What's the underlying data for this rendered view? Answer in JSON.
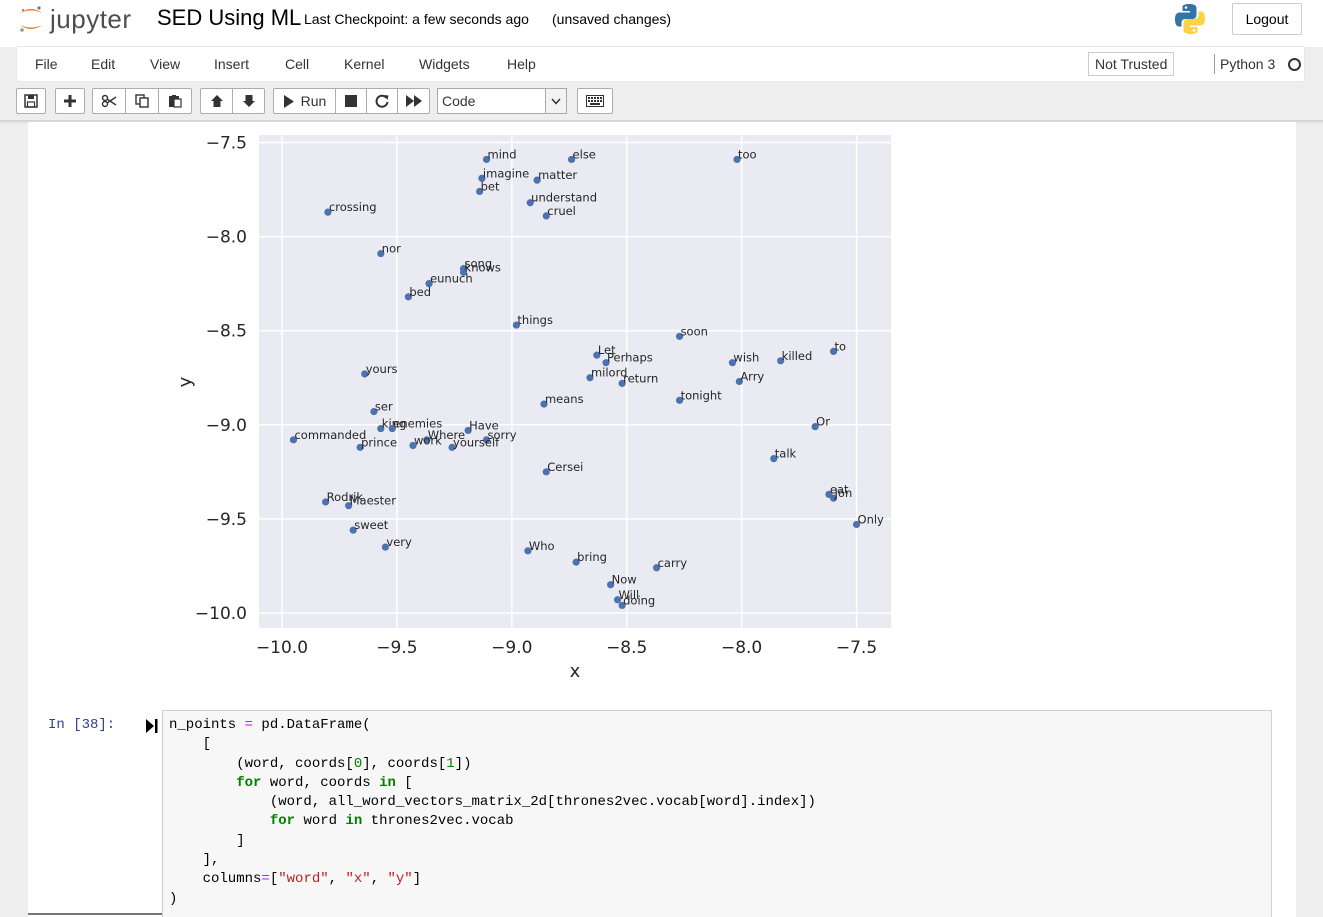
{
  "header": {
    "logo_text": "jupyter",
    "notebook_title": "SED Using ML",
    "checkpoint": "Last Checkpoint: a few seconds ago",
    "unsaved": "(unsaved changes)",
    "logout_label": "Logout"
  },
  "menubar": {
    "items": [
      "File",
      "Edit",
      "View",
      "Insert",
      "Cell",
      "Kernel",
      "Widgets",
      "Help"
    ],
    "not_trusted": "Not Trusted",
    "kernel_name": "Python 3"
  },
  "toolbar": {
    "run_label": "Run",
    "cell_type": "Code"
  },
  "icons": {
    "save": "save-icon",
    "add": "plus-icon",
    "cut": "scissors-icon",
    "copy": "copy-icon",
    "paste": "paste-icon",
    "move_up": "arrow-up-icon",
    "move_down": "arrow-down-icon",
    "run": "play-icon",
    "stop": "stop-icon",
    "restart": "restart-icon",
    "run_all": "fast-forward-icon",
    "keyboard": "keyboard-icon"
  },
  "cell": {
    "prompt": "In [38]:"
  },
  "chart_data": {
    "type": "scatter",
    "xlabel": "x",
    "ylabel": "y",
    "xlim": [
      -10.1,
      -7.35
    ],
    "ylim": [
      -10.08,
      -7.46
    ],
    "xticks": [
      -10.0,
      -9.5,
      -9.0,
      -8.5,
      -8.0,
      -7.5
    ],
    "yticks": [
      -7.5,
      -8.0,
      -8.5,
      -9.0,
      -9.5,
      -10.0
    ],
    "xtick_labels": [
      "−10.0",
      "−9.5",
      "−9.0",
      "−8.5",
      "−8.0",
      "−7.5"
    ],
    "ytick_labels": [
      "−7.5",
      "−8.0",
      "−8.5",
      "−9.0",
      "−9.5",
      "−10.0"
    ],
    "grid": true,
    "background": "#eaeaf2",
    "point_color": "#4c72b0",
    "points": [
      {
        "word": "mind",
        "x": -9.11,
        "y": -7.59
      },
      {
        "word": "else",
        "x": -8.74,
        "y": -7.59
      },
      {
        "word": "too",
        "x": -8.02,
        "y": -7.59
      },
      {
        "word": "imagine",
        "x": -9.13,
        "y": -7.69
      },
      {
        "word": "matter",
        "x": -8.89,
        "y": -7.7
      },
      {
        "word": "bet",
        "x": -9.14,
        "y": -7.76
      },
      {
        "word": "understand",
        "x": -8.92,
        "y": -7.82
      },
      {
        "word": "cruel",
        "x": -8.85,
        "y": -7.89
      },
      {
        "word": "crossing",
        "x": -9.8,
        "y": -7.87
      },
      {
        "word": "nor",
        "x": -9.57,
        "y": -8.09
      },
      {
        "word": "song",
        "x": -9.21,
        "y": -8.17
      },
      {
        "word": "knows",
        "x": -9.21,
        "y": -8.19
      },
      {
        "word": "eunuch",
        "x": -9.36,
        "y": -8.25
      },
      {
        "word": "bed",
        "x": -9.45,
        "y": -8.32
      },
      {
        "word": "things",
        "x": -8.98,
        "y": -8.47
      },
      {
        "word": "soon",
        "x": -8.27,
        "y": -8.53
      },
      {
        "word": "Let",
        "x": -8.63,
        "y": -8.63
      },
      {
        "word": "Perhaps",
        "x": -8.59,
        "y": -8.67
      },
      {
        "word": "wish",
        "x": -8.04,
        "y": -8.67
      },
      {
        "word": "killed",
        "x": -7.83,
        "y": -8.66
      },
      {
        "word": "to",
        "x": -7.6,
        "y": -8.61
      },
      {
        "word": "yours",
        "x": -9.64,
        "y": -8.73
      },
      {
        "word": "milord",
        "x": -8.66,
        "y": -8.75
      },
      {
        "word": "return",
        "x": -8.52,
        "y": -8.78
      },
      {
        "word": "Arry",
        "x": -8.01,
        "y": -8.77
      },
      {
        "word": "tonight",
        "x": -8.27,
        "y": -8.87
      },
      {
        "word": "means",
        "x": -8.86,
        "y": -8.89
      },
      {
        "word": "ser",
        "x": -9.6,
        "y": -8.93
      },
      {
        "word": "king",
        "x": -9.57,
        "y": -9.02
      },
      {
        "word": "enemies",
        "x": -9.52,
        "y": -9.02
      },
      {
        "word": "Have",
        "x": -9.19,
        "y": -9.03
      },
      {
        "word": "Where",
        "x": -9.37,
        "y": -9.08
      },
      {
        "word": "sorry",
        "x": -9.11,
        "y": -9.08
      },
      {
        "word": "commanded",
        "x": -9.95,
        "y": -9.08
      },
      {
        "word": "prince",
        "x": -9.66,
        "y": -9.12
      },
      {
        "word": "work",
        "x": -9.43,
        "y": -9.11
      },
      {
        "word": "yourself",
        "x": -9.26,
        "y": -9.12
      },
      {
        "word": "Or",
        "x": -7.68,
        "y": -9.01
      },
      {
        "word": "talk",
        "x": -7.86,
        "y": -9.18
      },
      {
        "word": "Cersei",
        "x": -8.85,
        "y": -9.25
      },
      {
        "word": "eat",
        "x": -7.62,
        "y": -9.37
      },
      {
        "word": "Jon",
        "x": -7.6,
        "y": -9.39
      },
      {
        "word": "Rodrik",
        "x": -9.81,
        "y": -9.41
      },
      {
        "word": "Maester",
        "x": -9.71,
        "y": -9.43
      },
      {
        "word": "Only",
        "x": -7.5,
        "y": -9.53
      },
      {
        "word": "sweet",
        "x": -9.69,
        "y": -9.56
      },
      {
        "word": "very",
        "x": -9.55,
        "y": -9.65
      },
      {
        "word": "Who",
        "x": -8.93,
        "y": -9.67
      },
      {
        "word": "bring",
        "x": -8.72,
        "y": -9.73
      },
      {
        "word": "carry",
        "x": -8.37,
        "y": -9.76
      },
      {
        "word": "Now",
        "x": -8.57,
        "y": -9.85
      },
      {
        "word": "Will",
        "x": -8.54,
        "y": -9.93
      },
      {
        "word": "doing",
        "x": -8.52,
        "y": -9.96
      }
    ]
  }
}
